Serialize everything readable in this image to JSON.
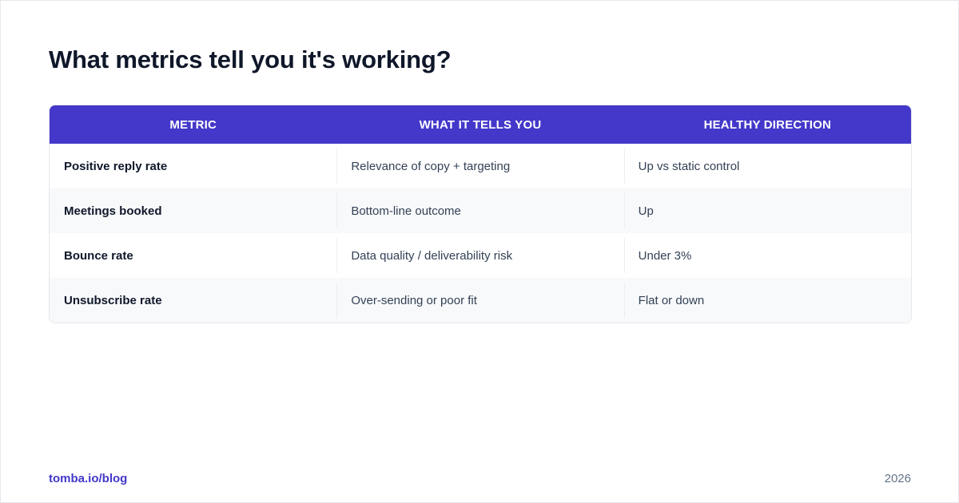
{
  "page": {
    "title": "What metrics tell you it's working?"
  },
  "table": {
    "headers": [
      "METRIC",
      "WHAT IT TELLS YOU",
      "HEALTHY DIRECTION"
    ],
    "rows": [
      [
        "Positive reply rate",
        "Relevance of copy + targeting",
        "Up vs static control"
      ],
      [
        "Meetings booked",
        "Bottom-line outcome",
        "Up"
      ],
      [
        "Bounce rate",
        "Data quality / deliverability risk",
        "Under 3%"
      ],
      [
        "Unsubscribe rate",
        "Over-sending or poor fit",
        "Flat or down"
      ]
    ]
  },
  "footer": {
    "source": "tomba.io/blog",
    "year": "2026"
  },
  "colors": {
    "accent": "#4338ca",
    "title_text": "#0f172a",
    "body_text": "#334155",
    "muted_text": "#64748b",
    "stripe_row": "#f8f9fb",
    "border": "#e5e7eb"
  }
}
